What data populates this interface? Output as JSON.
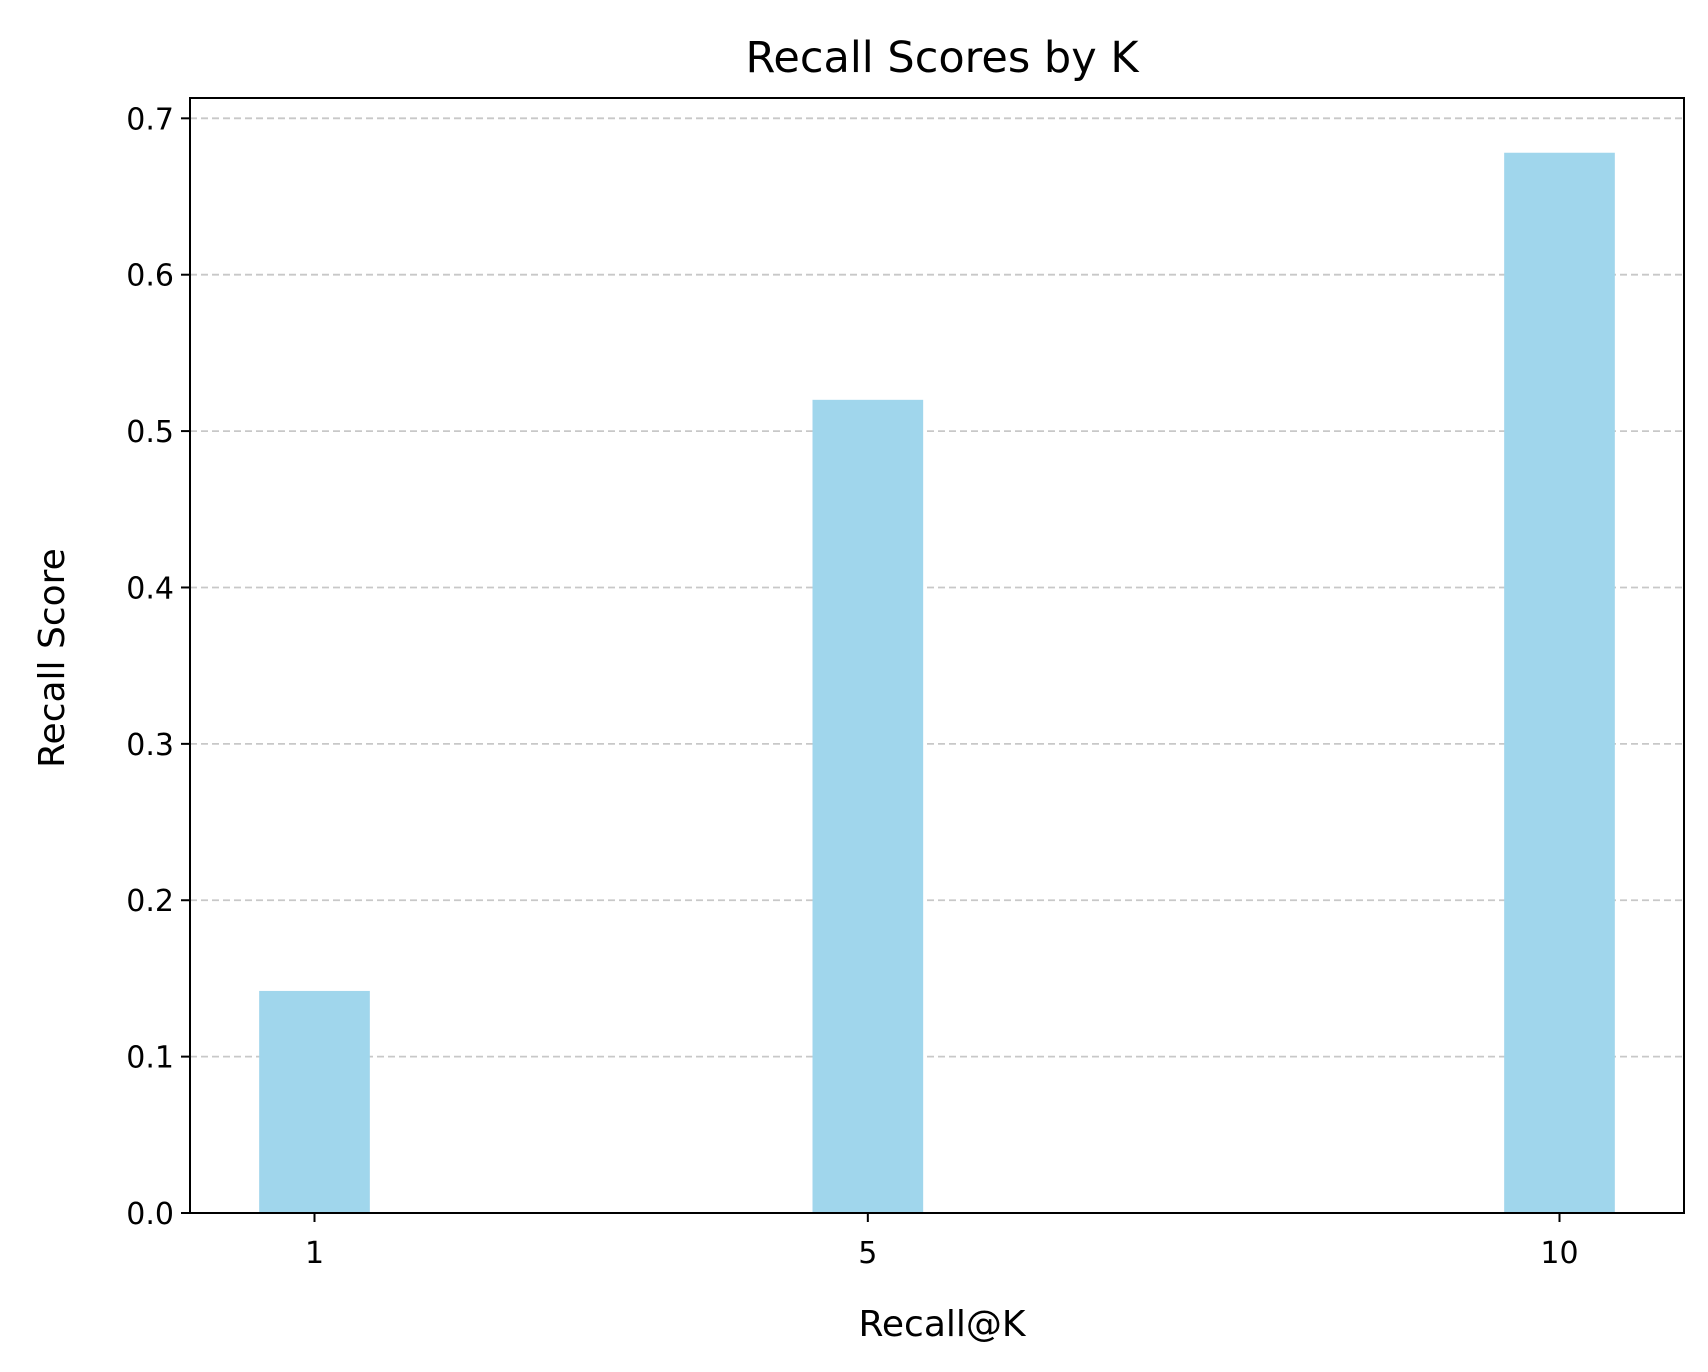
{
  "chart_data": {
    "type": "bar",
    "title": "Recall Scores by K",
    "xlabel": "Recall@K",
    "ylabel": "Recall Score",
    "x": [
      1,
      5,
      10
    ],
    "categories": [
      "1",
      "5",
      "10"
    ],
    "values": [
      0.142,
      0.52,
      0.678
    ],
    "xlim": [
      0.1,
      10.9
    ],
    "ylim": [
      0,
      0.713
    ],
    "yticks": [
      0.0,
      0.1,
      0.2,
      0.3,
      0.4,
      0.5,
      0.6,
      0.7
    ],
    "ytick_labels": [
      "0.0",
      "0.1",
      "0.2",
      "0.3",
      "0.4",
      "0.5",
      "0.6",
      "0.7"
    ],
    "bar_width": 0.8,
    "grid": {
      "axis": "y",
      "style": "dashed",
      "color": "#c8c8c8"
    },
    "bar_color": "#a0d6ec",
    "legend": null
  }
}
